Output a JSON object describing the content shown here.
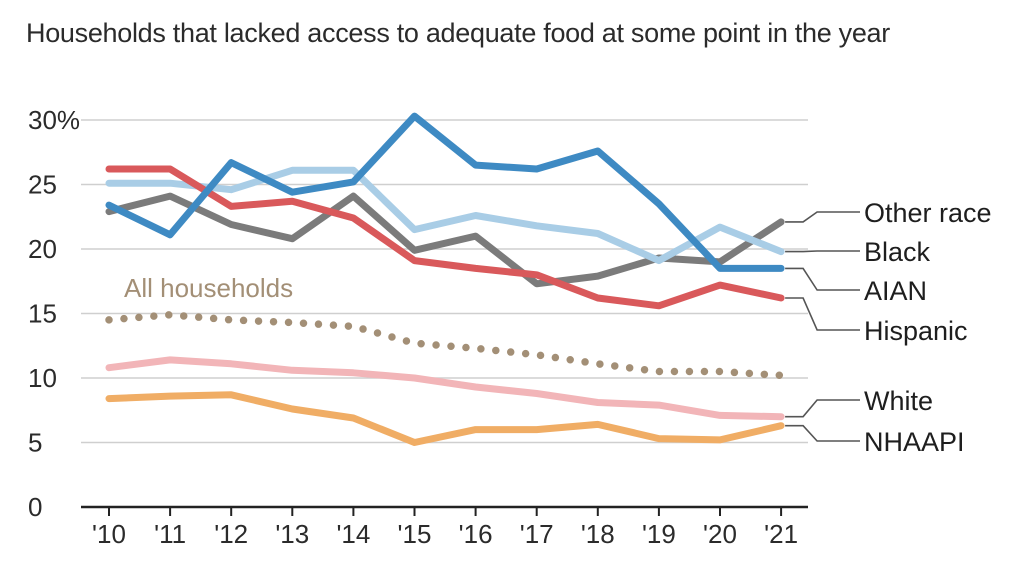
{
  "title": "Households that lacked access to adequate food at some point in the year",
  "chart_data": {
    "type": "line",
    "title": "Households that lacked access to adequate food at some point in the year",
    "xlabel": "",
    "ylabel": "",
    "x": [
      "'10",
      "'11",
      "'12",
      "'13",
      "'14",
      "'15",
      "'16",
      "'17",
      "'18",
      "'19",
      "'20",
      "'21"
    ],
    "ylim": [
      0,
      30
    ],
    "yticks": [
      "30%",
      "25",
      "20",
      "15",
      "10",
      "5",
      "0"
    ],
    "ytick_values": [
      30,
      25,
      20,
      15,
      10,
      5,
      0
    ],
    "grid": true,
    "series": [
      {
        "name": "Other race",
        "color": "#7b7b7b",
        "style": "solid",
        "values": [
          22.9,
          24.1,
          21.9,
          20.8,
          24.1,
          19.9,
          21.0,
          17.3,
          17.9,
          19.3,
          19.0,
          22.1
        ]
      },
      {
        "name": "Black",
        "color": "#a9cde6",
        "style": "solid",
        "values": [
          25.1,
          25.1,
          24.6,
          26.1,
          26.1,
          21.5,
          22.6,
          21.8,
          21.2,
          19.1,
          21.7,
          19.8
        ]
      },
      {
        "name": "AIAN",
        "color": "#3e8ac3",
        "style": "solid",
        "values": [
          23.4,
          21.1,
          26.7,
          24.4,
          25.2,
          30.3,
          26.5,
          26.2,
          27.6,
          23.5,
          18.5,
          18.5
        ]
      },
      {
        "name": "Hispanic",
        "color": "#d9595b",
        "style": "solid",
        "values": [
          26.2,
          26.2,
          23.3,
          23.7,
          22.4,
          19.1,
          18.5,
          18.0,
          16.2,
          15.6,
          17.2,
          16.2
        ]
      },
      {
        "name": "All households",
        "color": "#a38f76",
        "style": "dotted",
        "values": [
          14.5,
          14.9,
          14.5,
          14.3,
          14.0,
          12.7,
          12.3,
          11.8,
          11.1,
          10.5,
          10.5,
          10.2
        ]
      },
      {
        "name": "White",
        "color": "#f2b5b8",
        "style": "solid",
        "values": [
          10.8,
          11.4,
          11.1,
          10.6,
          10.4,
          10.0,
          9.3,
          8.8,
          8.1,
          7.9,
          7.1,
          7.0
        ]
      },
      {
        "name": "NHAAPI",
        "color": "#f0ad65",
        "style": "solid",
        "values": [
          8.4,
          8.6,
          8.7,
          7.6,
          6.9,
          5.0,
          6.0,
          6.0,
          6.4,
          5.3,
          5.2,
          6.3
        ]
      }
    ],
    "legend": {
      "placement": "right",
      "entries": [
        {
          "series": "Other race",
          "label": "Other race"
        },
        {
          "series": "Black",
          "label": "Black"
        },
        {
          "series": "AIAN",
          "label": "AIAN"
        },
        {
          "series": "Hispanic",
          "label": "Hispanic"
        },
        {
          "series": "White",
          "label": "White"
        },
        {
          "series": "NHAAPI",
          "label": "NHAAPI"
        }
      ]
    },
    "annotations": [
      {
        "text": "All households",
        "series": "All households",
        "color": "#a38f76"
      }
    ]
  }
}
